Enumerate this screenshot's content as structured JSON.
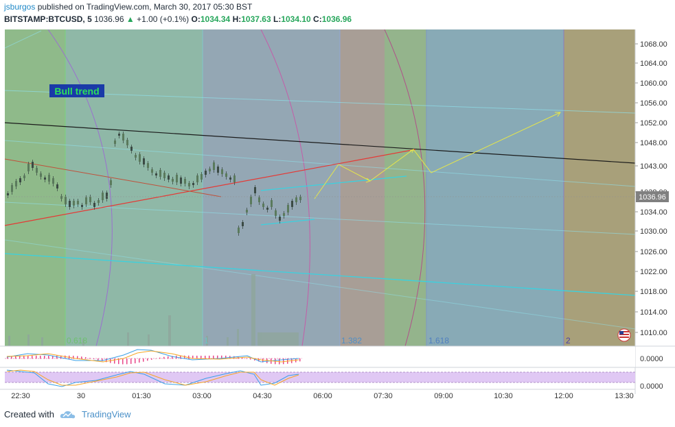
{
  "header": {
    "author": "jsburgos",
    "published_text": "published on TradingView.com, March 30, 2017 05:30 BST",
    "symbol": "BITSTAMP:BTCUSD, 5",
    "last": "1036.96",
    "change": "+1.00 (+0.1%)",
    "open_label": "O:",
    "open": "1034.34",
    "high_label": "H:",
    "high": "1037.63",
    "low_label": "L:",
    "low": "1034.10",
    "close_label": "C:",
    "close": "1036.96"
  },
  "chart": {
    "annotation": "Bull trend",
    "price_axis": [
      "1068.00",
      "1064.00",
      "1060.00",
      "1056.00",
      "1052.00",
      "1048.00",
      "1043.00",
      "1038.00",
      "1034.00",
      "1030.00",
      "1026.00",
      "1022.00",
      "1018.00",
      "1014.00",
      "1010.00"
    ],
    "current_price": "1036.96",
    "fib_labels": [
      "0.618",
      "1",
      "1.382",
      "1.618",
      "2"
    ],
    "macd_value": "0.0000",
    "stoch_value": "0.0000",
    "time_axis": [
      "22:30",
      "30",
      "01:30",
      "03:00",
      "04:30",
      "06:00",
      "07:30",
      "09:00",
      "10:30",
      "12:00",
      "13:30"
    ],
    "colors": {
      "accent": "#1e88c7",
      "up": "#26a65b",
      "trendline_red": "#e53935",
      "trendline_black": "#1a1a1a",
      "channel_cyan": "#39d2e0",
      "projection_yellow": "#e6e64a"
    }
  },
  "footer": {
    "created_with": "Created with",
    "brand": "TradingView",
    "logo_icon": "tradingview-cloud-icon",
    "flag_icon": "us-flag-icon"
  }
}
